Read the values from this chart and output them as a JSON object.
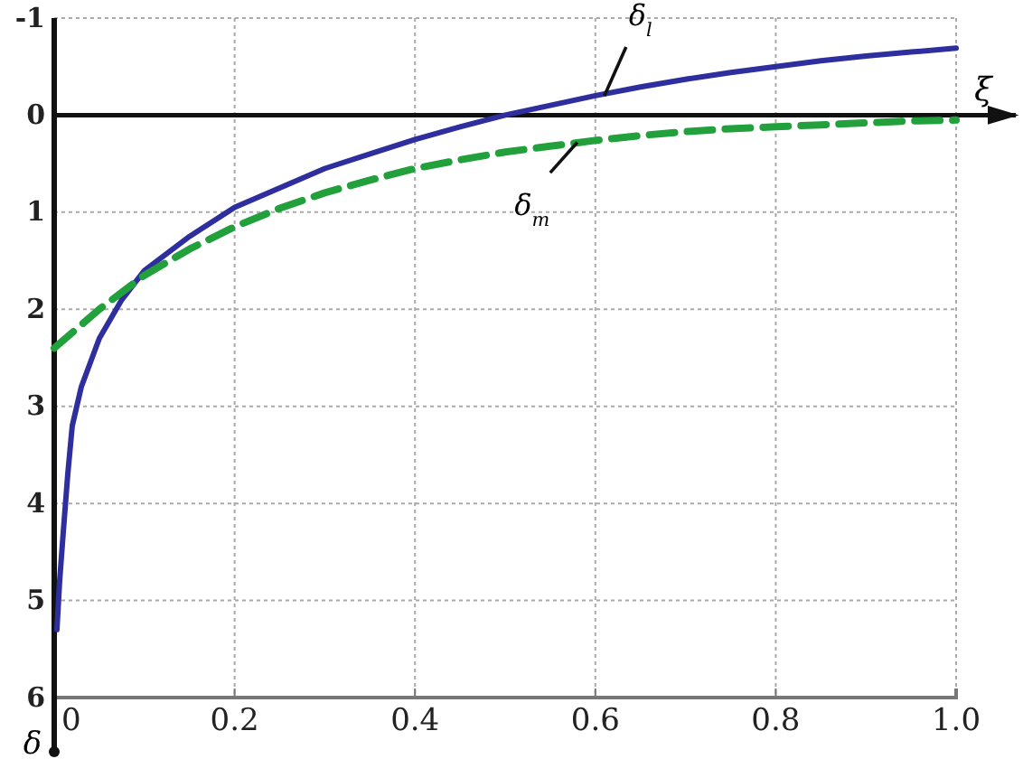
{
  "chart_data": {
    "type": "line",
    "xlabel": "ξ",
    "ylabel": "δ",
    "xlim": [
      0,
      1
    ],
    "ylim": [
      6,
      -1
    ],
    "xticks": [
      0,
      0.2,
      0.4,
      0.6,
      0.8,
      {
        "value": 1,
        "label": "1.0"
      }
    ],
    "yticks": [
      -1,
      0,
      1,
      2,
      3,
      4,
      5,
      6
    ],
    "grid": true,
    "series": [
      {
        "color": "#2e2e9e",
        "line_style": "solid",
        "x": [
          0.003,
          0.006,
          0.01,
          0.015,
          0.02,
          0.03,
          0.05,
          0.075,
          0.1,
          0.15,
          0.2,
          0.25,
          0.3,
          0.35,
          0.4,
          0.45,
          0.5,
          0.55,
          0.6,
          0.65,
          0.7,
          0.75,
          0.8,
          0.85,
          0.9,
          0.95,
          1.0
        ],
        "values": [
          5.3,
          4.8,
          4.3,
          3.7,
          3.2,
          2.8,
          2.3,
          1.9,
          1.6,
          1.25,
          0.95,
          0.75,
          0.55,
          0.4,
          0.25,
          0.12,
          0.0,
          -0.1,
          -0.2,
          -0.29,
          -0.37,
          -0.44,
          -0.5,
          -0.56,
          -0.61,
          -0.65,
          -0.69
        ]
      },
      {
        "color": "#22a03c",
        "line_style": "dashed",
        "x": [
          0,
          0.05,
          0.1,
          0.15,
          0.2,
          0.25,
          0.3,
          0.35,
          0.4,
          0.45,
          0.5,
          0.55,
          0.6,
          0.65,
          0.7,
          0.75,
          0.8,
          0.85,
          0.9,
          0.95,
          1.0
        ],
        "values": [
          2.4,
          2.0,
          1.65,
          1.38,
          1.15,
          0.96,
          0.8,
          0.67,
          0.55,
          0.46,
          0.38,
          0.32,
          0.26,
          0.21,
          0.17,
          0.14,
          0.12,
          0.1,
          0.08,
          0.06,
          0.05
        ]
      }
    ],
    "annotations": [
      {
        "text": "δ$_{l}$",
        "x": 0.61,
        "y": -0.2
      },
      {
        "text": "δ$_{m}$",
        "x": 0.58,
        "y": 0.28
      }
    ]
  }
}
